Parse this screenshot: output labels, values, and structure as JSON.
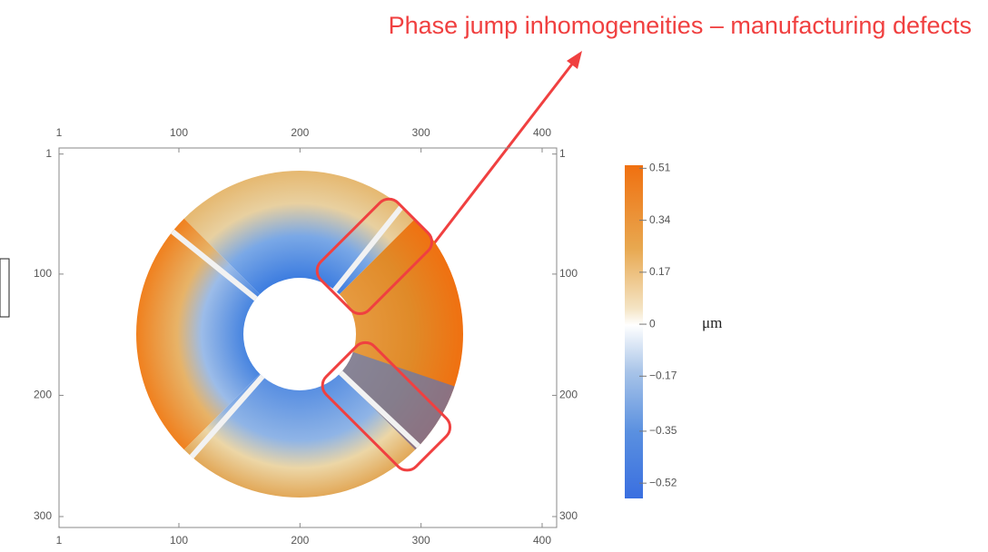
{
  "chart_data": {
    "type": "heatmap",
    "annotation": "Phase jump inhomogeneities – manufacturing defects",
    "xlim": [
      1,
      412
    ],
    "xticks": [
      1,
      100,
      200,
      300,
      400
    ],
    "ylim": [
      -4,
      309
    ],
    "yticks": [
      1,
      100,
      200,
      300
    ],
    "y_inverted": true,
    "colorbar": {
      "label": "μm",
      "lim": [
        -0.57,
        0.52
      ],
      "ticks": [
        0.51,
        0.34,
        0.17,
        0,
        {
          "value": -0.17,
          "label": "−0.17"
        },
        {
          "value": -0.35,
          "label": "−0.35"
        },
        {
          "value": -0.52,
          "label": "−0.52"
        }
      ]
    }
  }
}
